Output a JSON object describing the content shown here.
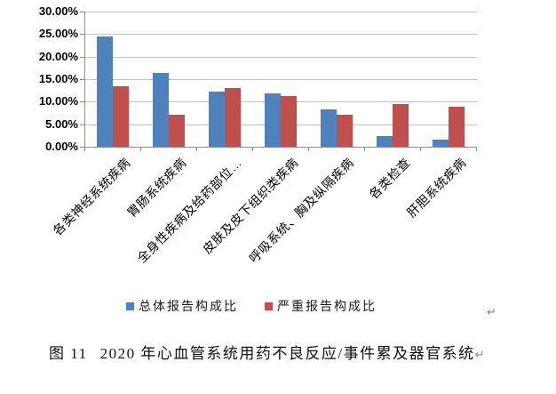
{
  "chart_data": {
    "type": "bar",
    "title": "",
    "categories": [
      "各类神经系统疾病",
      "胃肠系统疾病",
      "全身性疾病及给药部位…",
      "皮肤及皮下组织类疾病",
      "呼吸系统、胸及纵隔疾病",
      "各类检查",
      "肝胆系统疾病"
    ],
    "series": [
      {
        "name": "总体报告构成比",
        "color": "#4F81BD",
        "values": [
          24.4,
          16.3,
          12.2,
          11.9,
          8.2,
          2.4,
          1.6
        ]
      },
      {
        "name": "严重报告构成比",
        "color": "#C0504D",
        "values": [
          13.5,
          7.2,
          13.0,
          11.2,
          7.1,
          9.5,
          8.9
        ]
      }
    ],
    "ylim": [
      0,
      30
    ],
    "ytick_step": 5,
    "ytick_labels": [
      "0.00%",
      "5.00%",
      "10.00%",
      "15.00%",
      "20.00%",
      "25.00%",
      "30.00%"
    ],
    "xlabel": "",
    "ylabel": "",
    "grid": true,
    "legend_position": "bottom"
  },
  "marks": {
    "chart_line_return": "↵"
  },
  "caption": {
    "figure_label": "图 11",
    "text": "2020 年心血管系统用药不良反应/事件累及器官系统",
    "return_mark": "↵"
  }
}
